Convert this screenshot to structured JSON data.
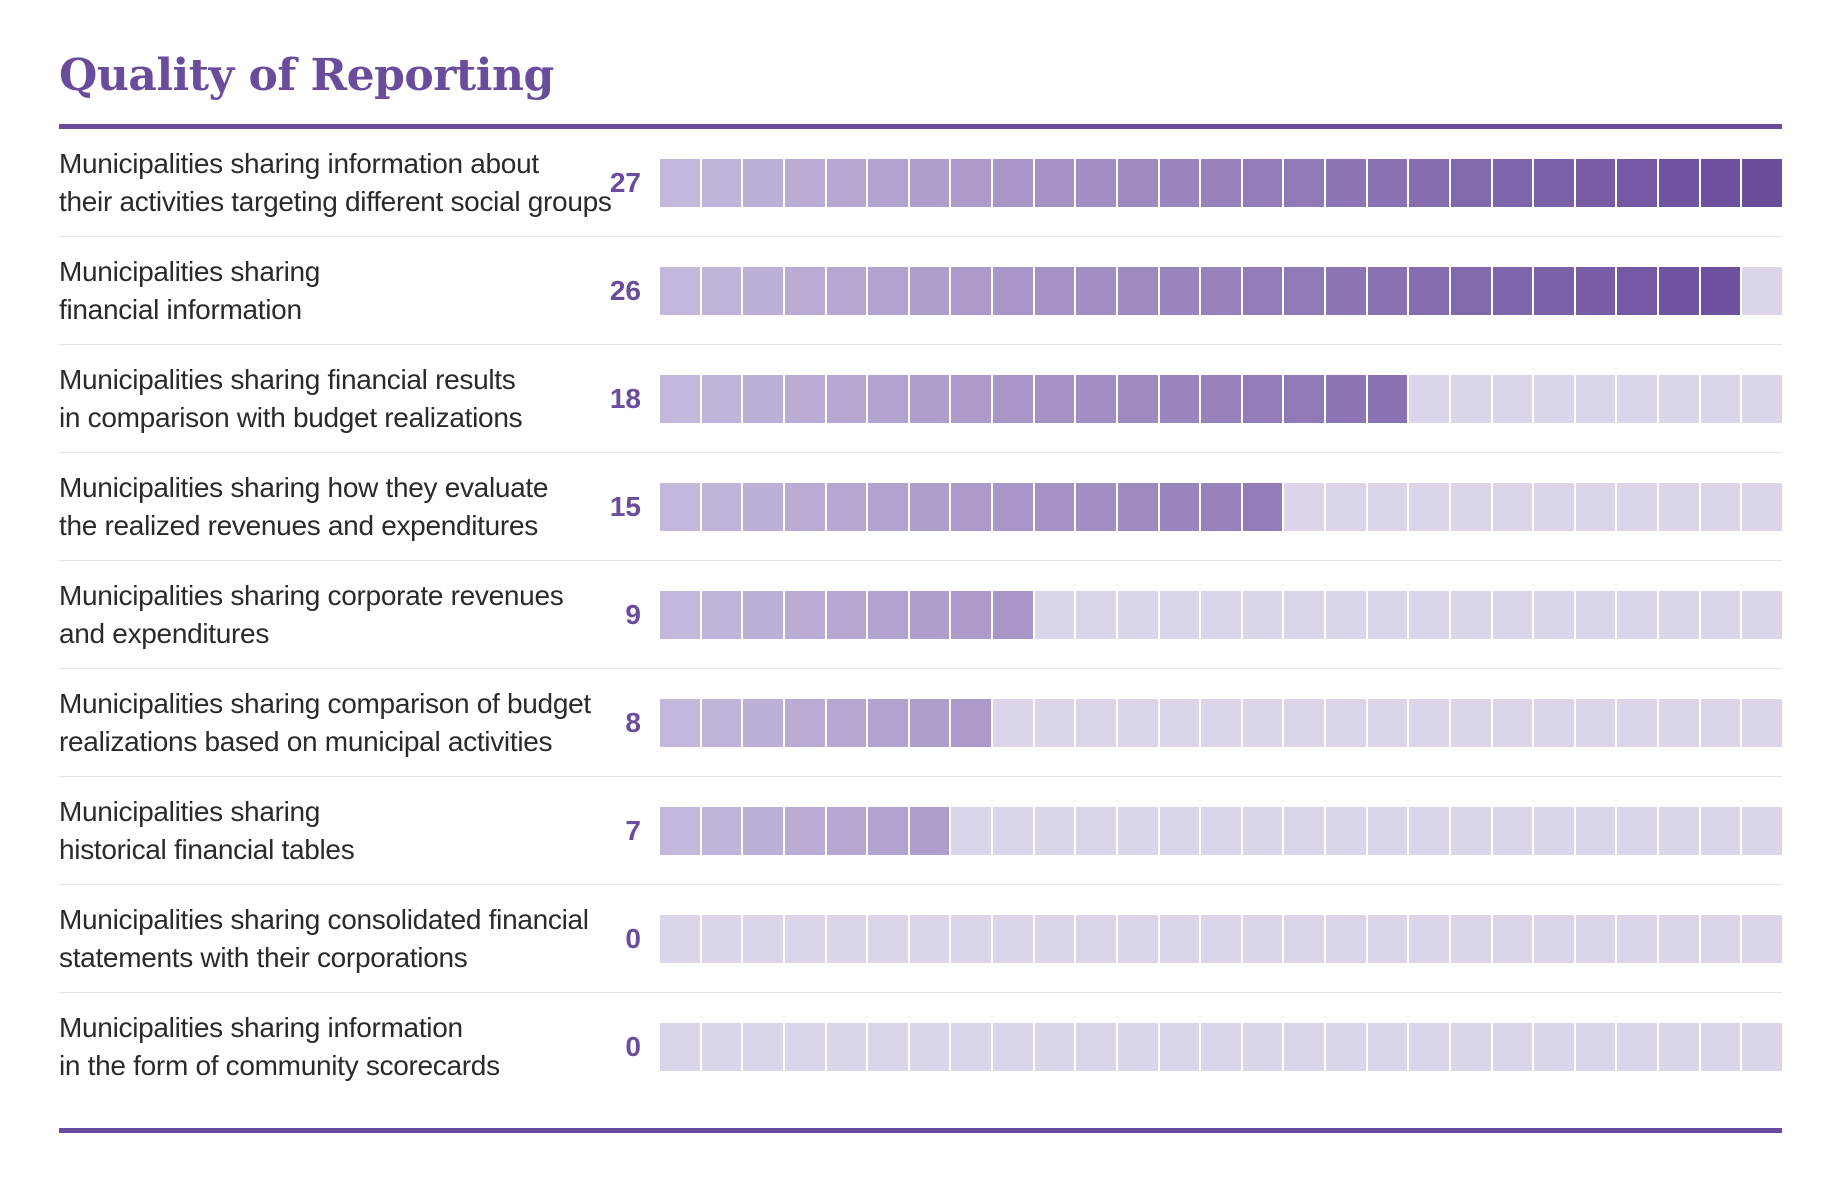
{
  "title": "Quality of Reporting",
  "colors": {
    "accent": "#6a4c9c",
    "empty_cell": "#dcd5e9",
    "gradient_start": "#c3b7db",
    "gradient_end": "#6a4c9c"
  },
  "chart_data": {
    "type": "bar",
    "title": "Quality of Reporting",
    "max_units": 27,
    "categories": [
      [
        "Municipalities sharing information about",
        "their activities targeting different social groups"
      ],
      [
        "Municipalities sharing",
        "financial information"
      ],
      [
        "Municipalities sharing financial results",
        "in comparison with budget realizations"
      ],
      [
        "Municipalities sharing how they evaluate",
        "the realized revenues and expenditures"
      ],
      [
        "Municipalities sharing corporate revenues",
        "and expenditures"
      ],
      [
        "Municipalities sharing comparison of budget",
        "realizations based on municipal activities"
      ],
      [
        "Municipalities sharing",
        "historical financial tables"
      ],
      [
        "Municipalities sharing consolidated financial",
        "statements with their corporations"
      ],
      [
        "Municipalities sharing information",
        "in the form of community scorecards"
      ]
    ],
    "values": [
      27,
      26,
      18,
      15,
      9,
      8,
      7,
      0,
      0
    ]
  }
}
